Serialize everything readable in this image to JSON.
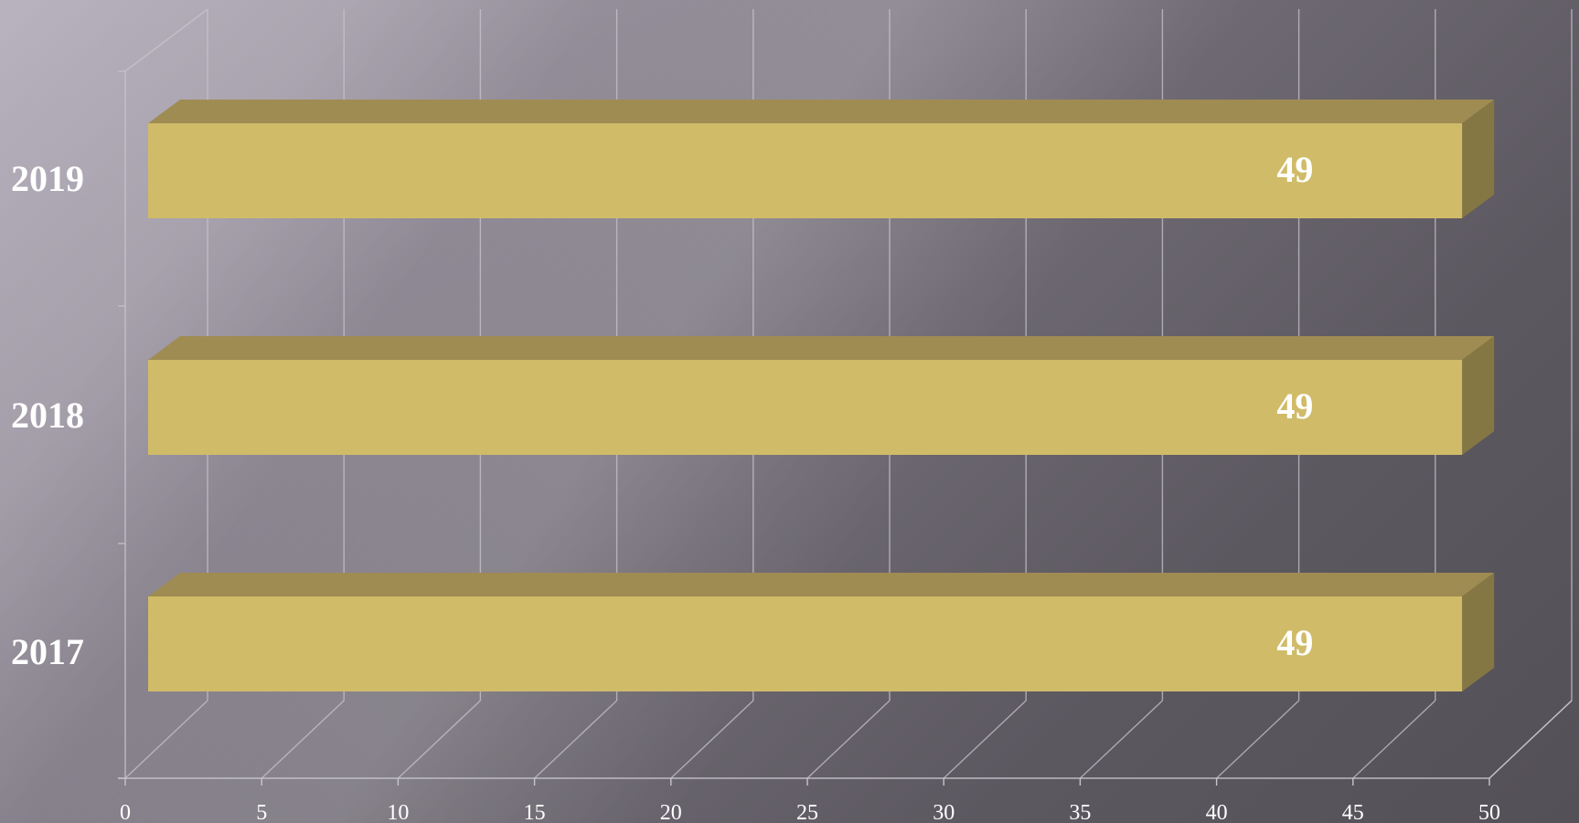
{
  "chart_data": {
    "type": "bar",
    "orientation": "horizontal",
    "three_d": true,
    "categories": [
      "2019",
      "2018",
      "2017"
    ],
    "values": [
      49,
      49,
      49
    ],
    "data_labels": [
      "49",
      "49",
      "49"
    ],
    "xlim": [
      0,
      50
    ],
    "x_ticks": [
      "0",
      "5",
      "10",
      "15",
      "20",
      "25",
      "30",
      "35",
      "40",
      "45",
      "50"
    ],
    "grid": true,
    "legend": "none",
    "title": "",
    "xlabel": "",
    "ylabel": "",
    "colors": {
      "bar_front": "#d0bb69",
      "bar_top": "#9f8c52",
      "bar_side": "#857744",
      "grid": "#c8c4cc",
      "tick_label": "#ffffff",
      "category_label": "#ffffff",
      "data_label": "#ffffff"
    }
  }
}
